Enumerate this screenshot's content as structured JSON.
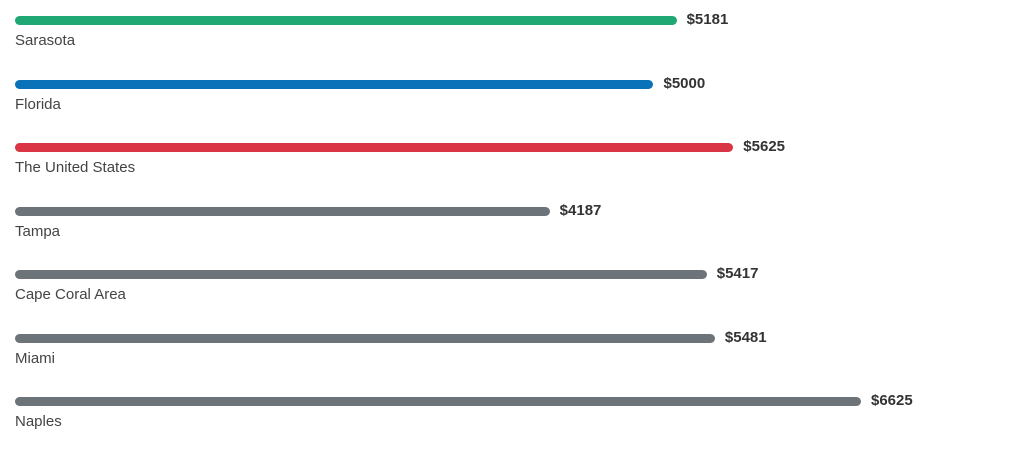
{
  "chart_data": {
    "type": "bar",
    "orientation": "horizontal",
    "categories": [
      "Sarasota",
      "Florida",
      "The United States",
      "Tampa",
      "Cape Coral Area",
      "Miami",
      "Naples"
    ],
    "values": [
      5181,
      5000,
      5625,
      4187,
      5417,
      5481,
      6625
    ],
    "value_labels": [
      "$5181",
      "$5000",
      "$5625",
      "$4187",
      "$5417",
      "$5481",
      "$6625"
    ],
    "bar_colors": [
      "#1fa774",
      "#0a72b8",
      "#d93545",
      "#6c747a",
      "#6c747a",
      "#6c747a",
      "#6c747a"
    ],
    "title": "",
    "xlabel": "",
    "ylabel": "",
    "grid": false,
    "legend": "none"
  }
}
